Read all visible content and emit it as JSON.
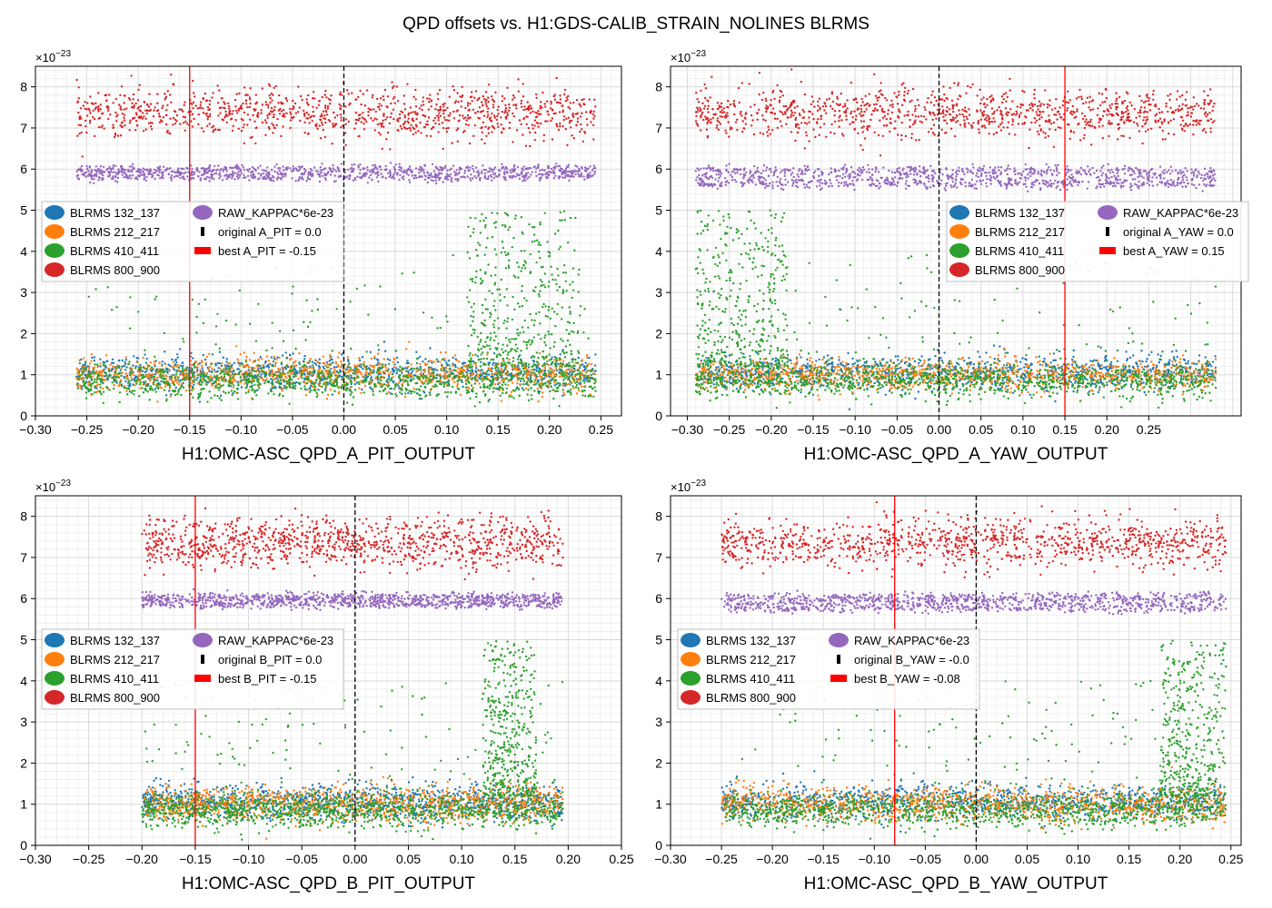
{
  "figure": {
    "suptitle": "QPD offsets vs. H1:GDS-CALIB_STRAIN_NOLINES BLRMS",
    "multiplier_label": "×10",
    "multiplier_exponent": "−23"
  },
  "colors": {
    "BLRMS 132_137": "#1f77b4",
    "BLRMS 212_217": "#ff7f0e",
    "BLRMS 410_411": "#2ca02c",
    "BLRMS 800_900": "#d62728",
    "RAW_KAPPAC*6e-23": "#9467bd",
    "original": "#000000",
    "best": "#ff0000"
  },
  "chart_data": [
    {
      "type": "scatter",
      "xlabel": "H1:OMC-ASC_QPD_A_PIT_OUTPUT",
      "ylabel": "",
      "xlim": [
        -0.3,
        0.27
      ],
      "ylim": [
        0,
        8.5
      ],
      "x_ticks": [
        "−0.30",
        "−0.25",
        "−0.20",
        "−0.15",
        "−0.10",
        "−0.05",
        "0.00",
        "0.05",
        "0.10",
        "0.15",
        "0.20",
        "0.25"
      ],
      "y_ticks": [
        "0",
        "1",
        "2",
        "3",
        "4",
        "5",
        "6",
        "7",
        "8"
      ],
      "x_range": [
        -0.26,
        0.245
      ],
      "grid": true,
      "legend_placement": "center-left",
      "legend": [
        "BLRMS 132_137",
        "BLRMS 212_217",
        "BLRMS 410_411",
        "BLRMS 800_900",
        "RAW_KAPPAC*6e-23",
        "original A_PIT = 0.0",
        "best A_PIT = -0.15"
      ],
      "original_offset": 0.0,
      "best_offset": -0.15,
      "series": [
        {
          "name": "BLRMS 132_137",
          "y_center": 1.05,
          "y_spread": 0.35
        },
        {
          "name": "BLRMS 212_217",
          "y_center": 1.0,
          "y_spread": 0.35
        },
        {
          "name": "BLRMS 410_411",
          "y_center": 0.85,
          "y_spread": 0.35,
          "excursion": "rises to ~5 near x=0.15–0.22"
        },
        {
          "name": "BLRMS 800_900",
          "y_center": 7.35,
          "y_spread": 0.5
        },
        {
          "name": "RAW_KAPPAC*6e-23",
          "y_center": 5.9,
          "y_spread": 0.15
        }
      ]
    },
    {
      "type": "scatter",
      "xlabel": "H1:OMC-ASC_QPD_A_YAW_OUTPUT",
      "ylabel": "",
      "xlim": [
        -0.32,
        0.36
      ],
      "ylim": [
        0,
        8.5
      ],
      "x_ticks": [
        "−0.30",
        "−0.25",
        "−0.20",
        "−0.15",
        "−0.10",
        "−0.05",
        "0.00",
        "0.05",
        "0.10",
        "0.15",
        "0.20",
        "0.25"
      ],
      "y_ticks": [
        "0",
        "1",
        "2",
        "3",
        "4",
        "5",
        "6",
        "7",
        "8"
      ],
      "x_range": [
        -0.29,
        0.33
      ],
      "grid": true,
      "legend_placement": "center-right",
      "legend": [
        "BLRMS 132_137",
        "BLRMS 212_217",
        "BLRMS 410_411",
        "BLRMS 800_900",
        "RAW_KAPPAC*6e-23",
        "original A_YAW = 0.0",
        "best A_YAW = 0.15"
      ],
      "original_offset": 0.0,
      "best_offset": 0.15,
      "series": [
        {
          "name": "BLRMS 132_137",
          "y_center": 1.05,
          "y_spread": 0.35
        },
        {
          "name": "BLRMS 212_217",
          "y_center": 1.0,
          "y_spread": 0.3
        },
        {
          "name": "BLRMS 410_411",
          "y_center": 0.85,
          "y_spread": 0.35,
          "excursion": "rises to ~5 near x=-0.28"
        },
        {
          "name": "BLRMS 800_900",
          "y_center": 7.35,
          "y_spread": 0.5
        },
        {
          "name": "RAW_KAPPAC*6e-23",
          "y_center": 5.8,
          "y_spread": 0.25
        }
      ]
    },
    {
      "type": "scatter",
      "xlabel": "H1:OMC-ASC_QPD_B_PIT_OUTPUT",
      "ylabel": "",
      "xlim": [
        -0.3,
        0.25
      ],
      "ylim": [
        0,
        8.5
      ],
      "x_ticks": [
        "−0.30",
        "−0.25",
        "−0.20",
        "−0.15",
        "−0.10",
        "−0.05",
        "0.00",
        "0.05",
        "0.10",
        "0.15",
        "0.20",
        "0.25"
      ],
      "y_ticks": [
        "0",
        "1",
        "2",
        "3",
        "4",
        "5",
        "6",
        "7",
        "8"
      ],
      "x_range": [
        -0.2,
        0.195
      ],
      "grid": true,
      "legend_placement": "center-left",
      "legend": [
        "BLRMS 132_137",
        "BLRMS 212_217",
        "BLRMS 410_411",
        "BLRMS 800_900",
        "RAW_KAPPAC*6e-23",
        "original B_PIT = 0.0",
        "best B_PIT = -0.15"
      ],
      "original_offset": 0.0,
      "best_offset": -0.15,
      "series": [
        {
          "name": "BLRMS 132_137",
          "y_center": 1.05,
          "y_spread": 0.35
        },
        {
          "name": "BLRMS 212_217",
          "y_center": 1.0,
          "y_spread": 0.35
        },
        {
          "name": "BLRMS 410_411",
          "y_center": 0.85,
          "y_spread": 0.35,
          "excursion": "rises to ~5 near x=0.14–0.16"
        },
        {
          "name": "BLRMS 800_900",
          "y_center": 7.35,
          "y_spread": 0.5
        },
        {
          "name": "RAW_KAPPAC*6e-23",
          "y_center": 5.95,
          "y_spread": 0.15
        }
      ]
    },
    {
      "type": "scatter",
      "xlabel": "H1:OMC-ASC_QPD_B_YAW_OUTPUT",
      "ylabel": "",
      "xlim": [
        -0.3,
        0.26
      ],
      "ylim": [
        0,
        8.5
      ],
      "x_ticks": [
        "−0.30",
        "−0.25",
        "−0.20",
        "−0.15",
        "−0.10",
        "−0.05",
        "0.00",
        "0.05",
        "0.10",
        "0.15",
        "0.20",
        "0.25"
      ],
      "y_ticks": [
        "0",
        "1",
        "2",
        "3",
        "4",
        "5",
        "6",
        "7",
        "8"
      ],
      "x_range": [
        -0.25,
        0.245
      ],
      "grid": true,
      "legend_placement": "center-left",
      "legend": [
        "BLRMS 132_137",
        "BLRMS 212_217",
        "BLRMS 410_411",
        "BLRMS 800_900",
        "RAW_KAPPAC*6e-23",
        "original B_YAW = -0.0",
        "best B_YAW = -0.08"
      ],
      "original_offset": 0.0,
      "best_offset": -0.08,
      "series": [
        {
          "name": "BLRMS 132_137",
          "y_center": 1.05,
          "y_spread": 0.35
        },
        {
          "name": "BLRMS 212_217",
          "y_center": 1.0,
          "y_spread": 0.35
        },
        {
          "name": "BLRMS 410_411",
          "y_center": 0.85,
          "y_spread": 0.35,
          "excursion": "rises to ~5 near x=0.2–0.24"
        },
        {
          "name": "BLRMS 800_900",
          "y_center": 7.35,
          "y_spread": 0.5
        },
        {
          "name": "RAW_KAPPAC*6e-23",
          "y_center": 5.9,
          "y_spread": 0.2
        }
      ]
    }
  ]
}
